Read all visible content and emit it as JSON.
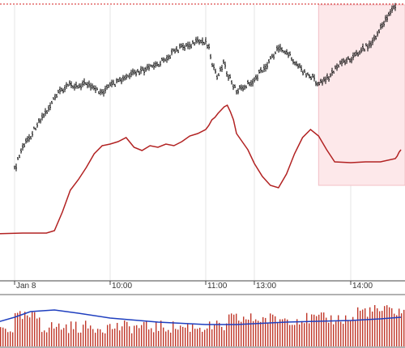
{
  "chart_data": {
    "type": "line",
    "time_axis": {
      "tick_labels": [
        "Jan 8",
        "10:00",
        "11:00",
        "13:00",
        "14:00"
      ],
      "tick_times": [
        "09:00",
        "10:00",
        "11:00",
        "13:00",
        "14:00"
      ]
    },
    "grid": true,
    "highlight_region": {
      "from": "13:40",
      "to": "end",
      "color": "#fde8ea"
    },
    "price_series": {
      "style": "ohlc-bars",
      "color": "#000000",
      "points": [
        [
          "09:00",
          210
        ],
        [
          "09:05",
          182
        ],
        [
          "09:10",
          168
        ],
        [
          "09:15",
          150
        ],
        [
          "09:20",
          138
        ],
        [
          "09:25",
          122
        ],
        [
          "09:30",
          110
        ],
        [
          "09:35",
          104
        ],
        [
          "09:40",
          106
        ],
        [
          "09:45",
          102
        ],
        [
          "09:50",
          111
        ],
        [
          "09:55",
          114
        ],
        [
          "10:00",
          106
        ],
        [
          "10:05",
          102
        ],
        [
          "10:10",
          96
        ],
        [
          "10:15",
          91
        ],
        [
          "10:20",
          88
        ],
        [
          "10:25",
          84
        ],
        [
          "10:30",
          79
        ],
        [
          "10:35",
          72
        ],
        [
          "10:40",
          64
        ],
        [
          "10:45",
          58
        ],
        [
          "10:50",
          55
        ],
        [
          "10:55",
          52
        ],
        [
          "11:00",
          51
        ],
        [
          "11:05",
          58
        ],
        [
          "11:10",
          76
        ],
        [
          "11:15",
          90
        ],
        [
          "11:20",
          96
        ],
        [
          "11:25",
          84
        ],
        [
          "11:30",
          76
        ],
        [
          "11:35",
          92
        ],
        [
          "11:40",
          98
        ],
        [
          "11:45",
          106
        ],
        [
          "11:50",
          112
        ],
        [
          "12:55",
          104
        ],
        [
          "13:00",
          98
        ],
        [
          "13:05",
          87
        ],
        [
          "13:10",
          73
        ],
        [
          "13:15",
          60
        ],
        [
          "13:20",
          64
        ],
        [
          "13:25",
          76
        ],
        [
          "13:30",
          87
        ],
        [
          "13:35",
          94
        ],
        [
          "13:40",
          104
        ],
        [
          "13:45",
          98
        ],
        [
          "13:50",
          86
        ],
        [
          "13:55",
          76
        ],
        [
          "14:00",
          72
        ],
        [
          "14:05",
          68
        ],
        [
          "14:10",
          62
        ],
        [
          "14:15",
          58
        ],
        [
          "14:20",
          55
        ],
        [
          "14:25",
          46
        ],
        [
          "14:30",
          36
        ],
        [
          "14:35",
          24
        ],
        [
          "14:40",
          14
        ],
        [
          "14:45",
          8
        ]
      ]
    },
    "indicator_series": {
      "style": "line",
      "color": "#b22222",
      "points": [
        [
          "08:45",
          289
        ],
        [
          "09:05",
          288
        ],
        [
          "09:20",
          288
        ],
        [
          "09:25",
          285
        ],
        [
          "09:30",
          262
        ],
        [
          "09:35",
          235
        ],
        [
          "09:40",
          222
        ],
        [
          "09:45",
          207
        ],
        [
          "09:50",
          190
        ],
        [
          "09:55",
          180
        ],
        [
          "10:00",
          178
        ],
        [
          "10:05",
          175
        ],
        [
          "10:10",
          170
        ],
        [
          "10:15",
          182
        ],
        [
          "10:20",
          186
        ],
        [
          "10:25",
          180
        ],
        [
          "10:30",
          182
        ],
        [
          "10:35",
          178
        ],
        [
          "10:40",
          180
        ],
        [
          "10:45",
          175
        ],
        [
          "10:50",
          168
        ],
        [
          "10:55",
          165
        ],
        [
          "11:00",
          160
        ],
        [
          "11:05",
          155
        ],
        [
          "11:10",
          148
        ],
        [
          "11:15",
          145
        ],
        [
          "11:20",
          140
        ],
        [
          "11:25",
          136
        ],
        [
          "11:30",
          132
        ],
        [
          "11:35",
          130
        ],
        [
          "11:40",
          138
        ],
        [
          "11:45",
          148
        ],
        [
          "11:50",
          165
        ],
        [
          "12:55",
          185
        ],
        [
          "13:00",
          202
        ],
        [
          "13:05",
          218
        ],
        [
          "13:10",
          229
        ],
        [
          "13:15",
          232
        ],
        [
          "13:20",
          215
        ],
        [
          "13:25",
          190
        ],
        [
          "13:30",
          170
        ],
        [
          "13:35",
          160
        ],
        [
          "13:40",
          168
        ],
        [
          "13:45",
          185
        ],
        [
          "13:50",
          200
        ],
        [
          "14:00",
          201
        ],
        [
          "14:15",
          200
        ],
        [
          "14:30",
          200
        ],
        [
          "14:45",
          196
        ],
        [
          "14:50",
          193
        ],
        [
          "14:55",
          188
        ],
        [
          "15:00",
          185
        ]
      ]
    },
    "volume_panel": {
      "bars_color": "#c0392b",
      "average_color": "#1f3fbf",
      "average_line": [
        [
          "08:45",
          400
        ],
        [
          "09:00",
          392
        ],
        [
          "09:10",
          385
        ],
        [
          "09:25",
          383
        ],
        [
          "09:40",
          387
        ],
        [
          "10:00",
          393
        ],
        [
          "10:30",
          398
        ],
        [
          "11:00",
          401
        ],
        [
          "11:50",
          401
        ],
        [
          "13:20",
          398
        ],
        [
          "14:00",
          396
        ],
        [
          "14:30",
          394
        ],
        [
          "15:00",
          392
        ]
      ]
    }
  }
}
